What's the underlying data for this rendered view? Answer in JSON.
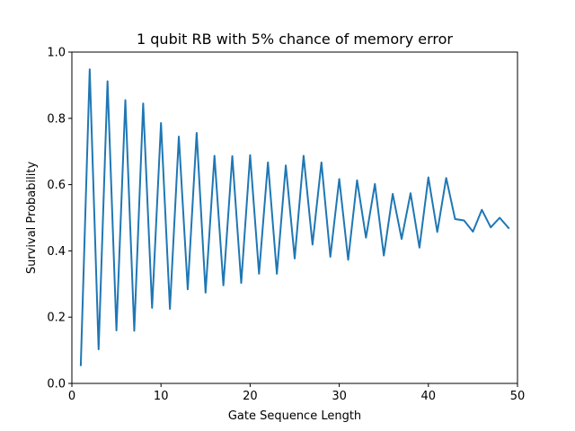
{
  "chart_data": {
    "type": "line",
    "title": "1 qubit RB with 5% chance of memory error",
    "xlabel": "Gate Sequence Length",
    "ylabel": "Survival Probability",
    "xlim": [
      0,
      50
    ],
    "ylim": [
      0,
      1.0
    ],
    "xticks": [
      0,
      10,
      20,
      30,
      40,
      50
    ],
    "yticks": [
      0.0,
      0.2,
      0.4,
      0.6,
      0.8,
      1.0
    ],
    "xtick_labels": [
      "0",
      "10",
      "20",
      "30",
      "40",
      "50"
    ],
    "ytick_labels": [
      "0.0",
      "0.2",
      "0.4",
      "0.6",
      "0.8",
      "1.0"
    ],
    "grid": false,
    "series": [
      {
        "color": "#1f77b4",
        "x": [
          1,
          2,
          3,
          4,
          5,
          6,
          7,
          8,
          9,
          10,
          11,
          12,
          13,
          14,
          15,
          16,
          17,
          18,
          19,
          20,
          21,
          22,
          23,
          24,
          25,
          26,
          27,
          28,
          29,
          30,
          31,
          32,
          33,
          34,
          35,
          36,
          37,
          38,
          39,
          40,
          41,
          42,
          43,
          44,
          45,
          46,
          47,
          48,
          49
        ],
        "y": [
          0.055,
          0.948,
          0.103,
          0.912,
          0.16,
          0.855,
          0.159,
          0.845,
          0.228,
          0.786,
          0.225,
          0.745,
          0.284,
          0.756,
          0.274,
          0.687,
          0.296,
          0.686,
          0.303,
          0.689,
          0.331,
          0.667,
          0.331,
          0.658,
          0.377,
          0.687,
          0.419,
          0.667,
          0.382,
          0.617,
          0.373,
          0.613,
          0.44,
          0.602,
          0.386,
          0.572,
          0.436,
          0.574,
          0.41,
          0.622,
          0.457,
          0.62,
          0.496,
          0.492,
          0.458,
          0.524,
          0.471,
          0.5,
          0.469
        ]
      }
    ]
  }
}
